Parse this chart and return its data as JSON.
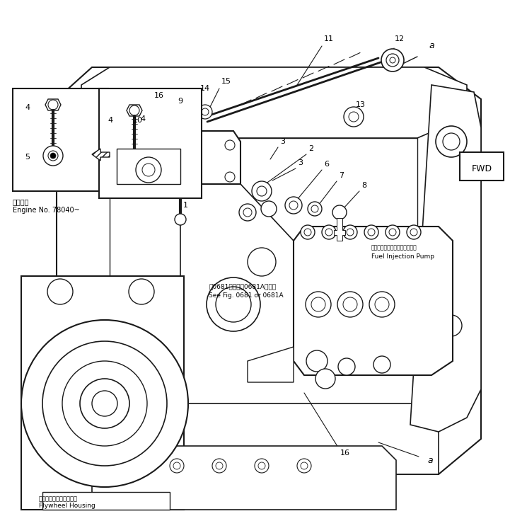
{
  "bg_color": "#ffffff",
  "line_color": "#1a1a1a",
  "fig_width": 7.21,
  "fig_height": 7.36,
  "dpi": 100,
  "labels": {
    "engine_note_jp": "適用号機",
    "engine_note_en": "Engine No. 78040~",
    "see_fig_jp": "第0681図または0681A図参照",
    "see_fig_en": "See Fig. 0681 or 0681A",
    "fuel_pump_jp": "フェルインジェクションポンプ",
    "fuel_pump_en": "Fuel Injection Pump",
    "flywheel_jp": "フライキールハウジング",
    "flywheel_en": "Flywheel Housing",
    "fwd": "FWD"
  }
}
